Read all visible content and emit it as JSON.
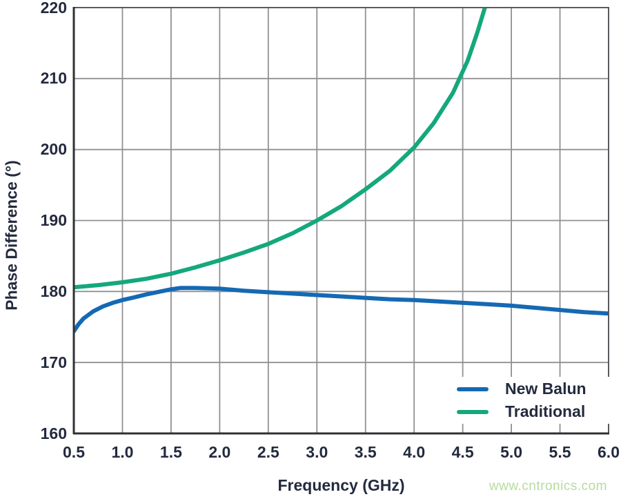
{
  "watermark": {
    "text": "www.cntronics.com",
    "color": "#b6db9f"
  },
  "colors": {
    "text": "#232a3e",
    "grid": "#909094",
    "border": "#595a5f",
    "axis": "#2f3034",
    "background": "#ffffff",
    "new_balun_line": "#1569b3",
    "traditional_line": "#14a87c"
  },
  "chart_data": {
    "type": "line",
    "title": "",
    "xlabel": "Frequency (GHz)",
    "ylabel": "Phase Difference (°)",
    "xlim": [
      0.5,
      6.0
    ],
    "ylim": [
      160,
      220
    ],
    "grid": true,
    "legend_position": "lower right",
    "x_tick_values": [
      0.5,
      1.0,
      1.5,
      2.0,
      2.5,
      3.0,
      3.5,
      4.0,
      4.5,
      5.0,
      5.5,
      6.0
    ],
    "x_tick_labels": [
      "0.5",
      "1.0",
      "1.5",
      "2.0",
      "2.5",
      "3.0",
      "3.5",
      "4.0",
      "4.5",
      "5.0",
      "5.5",
      "6.0"
    ],
    "y_tick_values": [
      160,
      170,
      180,
      190,
      200,
      210,
      220
    ],
    "y_tick_labels": [
      "160",
      "170",
      "180",
      "190",
      "200",
      "210",
      "220"
    ],
    "series": [
      {
        "name": "New Balun",
        "color": "#1569b3",
        "x": [
          0.5,
          0.55,
          0.6,
          0.7,
          0.8,
          0.9,
          1.0,
          1.1,
          1.25,
          1.5,
          1.6,
          1.75,
          2.0,
          2.25,
          2.5,
          2.75,
          3.0,
          3.25,
          3.5,
          3.75,
          4.0,
          4.25,
          4.5,
          4.75,
          5.0,
          5.25,
          5.5,
          5.75,
          6.0
        ],
        "y": [
          174.4,
          175.4,
          176.2,
          177.2,
          177.9,
          178.4,
          178.8,
          179.1,
          179.6,
          180.3,
          180.5,
          180.5,
          180.4,
          180.1,
          179.9,
          179.7,
          179.5,
          179.3,
          179.1,
          178.9,
          178.8,
          178.6,
          178.4,
          178.2,
          178.0,
          177.7,
          177.4,
          177.1,
          176.9
        ]
      },
      {
        "name": "Traditional",
        "color": "#14a87c",
        "x": [
          0.5,
          0.75,
          1.0,
          1.25,
          1.5,
          1.75,
          2.0,
          2.25,
          2.5,
          2.75,
          3.0,
          3.25,
          3.5,
          3.75,
          4.0,
          4.2,
          4.4,
          4.55,
          4.65,
          4.75
        ],
        "y": [
          180.6,
          180.9,
          181.3,
          181.8,
          182.5,
          183.4,
          184.4,
          185.5,
          186.7,
          188.2,
          190.0,
          192.0,
          194.4,
          197.0,
          200.3,
          203.7,
          208.0,
          212.5,
          216.5,
          221.0
        ]
      }
    ]
  }
}
